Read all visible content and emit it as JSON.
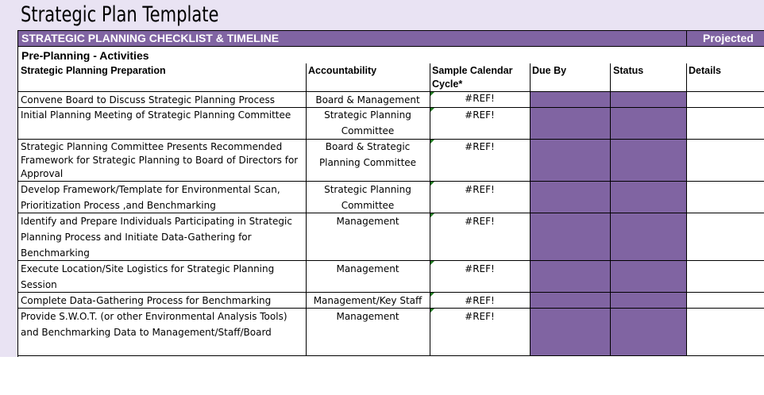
{
  "title": "Strategic Plan Template",
  "header_bar": {
    "title": "STRATEGIC PLANNING CHECKLIST & TIMELINE",
    "right_label": "Projected"
  },
  "section_label": "Pre-Planning - Activities",
  "columns": {
    "task": "Strategic Planning Preparation",
    "accountability": "Accountability",
    "calendar_line1": "Sample Calendar",
    "calendar_line2": "Cycle*",
    "due_by": "Due By",
    "status": "Status",
    "details": "Details"
  },
  "colors": {
    "accent_purple": "#8064a2",
    "band_lavender": "#e9e3f3",
    "comment_marker": "#1f7a1f"
  },
  "rows": [
    {
      "task": [
        "Convene Board to Discuss Strategic Planning Process"
      ],
      "accountability": [
        "Board & Management"
      ],
      "calendar": "#REF!"
    },
    {
      "task": [
        "Initial Planning Meeting of Strategic Planning Committee"
      ],
      "accountability": [
        "Strategic Planning",
        "Committee"
      ],
      "calendar": "#REF!"
    },
    {
      "task": [
        "Strategic Planning Committee Presents Recommended",
        "Framework for Strategic Planning to Board of Directors for",
        "Approval"
      ],
      "accountability": [
        "Board & Strategic",
        "Planning Committee"
      ],
      "calendar": "#REF!"
    },
    {
      "task": [
        "Develop Framework/Template for Environmental Scan,",
        "Prioritization Process ,and Benchmarking"
      ],
      "accountability": [
        "Strategic Planning",
        "Committee"
      ],
      "calendar": "#REF!"
    },
    {
      "task": [
        "Identify and Prepare Individuals Participating in Strategic",
        "Planning Process and Initiate Data-Gathering for",
        "Benchmarking"
      ],
      "accountability": [
        "Management"
      ],
      "calendar": "#REF!"
    },
    {
      "task": [
        "Execute Location/Site Logistics for Strategic Planning",
        "Session"
      ],
      "accountability": [
        "Management"
      ],
      "calendar": "#REF!"
    },
    {
      "task": [
        "Complete Data-Gathering Process for Benchmarking"
      ],
      "accountability": [
        "Management/Key Staff"
      ],
      "calendar": "#REF!"
    },
    {
      "task": [
        "Provide S.W.O.T. (or other Environmental Analysis Tools)",
        "and Benchmarking Data to Management/Staff/Board"
      ],
      "accountability": [
        "Management"
      ],
      "calendar": "#REF!"
    }
  ]
}
